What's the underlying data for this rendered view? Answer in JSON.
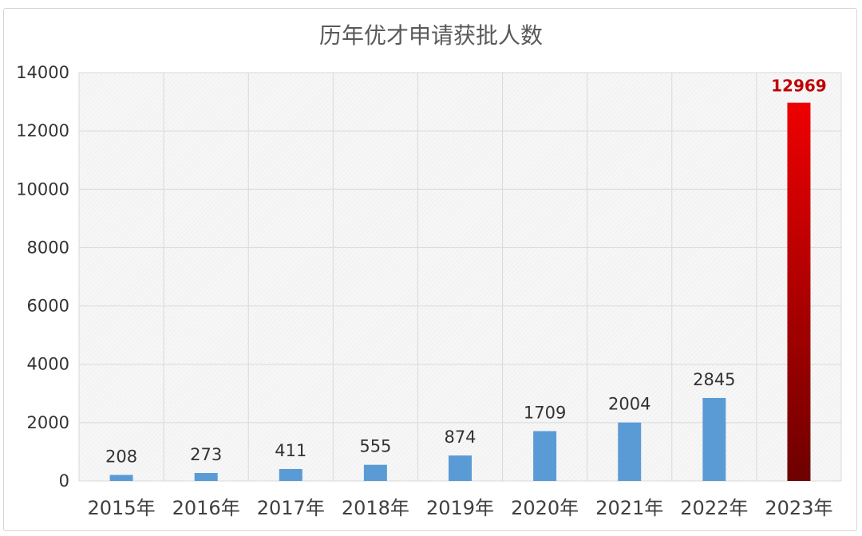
{
  "chart_data": {
    "type": "bar",
    "title": "历年优才申请获批人数",
    "xlabel": "",
    "ylabel": "",
    "categories": [
      "2015年",
      "2016年",
      "2017年",
      "2018年",
      "2019年",
      "2020年",
      "2021年",
      "2022年",
      "2023年"
    ],
    "values": [
      208,
      273,
      411,
      555,
      874,
      1709,
      2004,
      2845,
      12969
    ],
    "data_labels": [
      "208",
      "273",
      "411",
      "555",
      "874",
      "1709",
      "2004",
      "2845",
      "12969"
    ],
    "ylim": [
      0,
      14000
    ],
    "y_ticks": [
      0,
      2000,
      4000,
      6000,
      8000,
      10000,
      12000,
      14000
    ],
    "y_tick_labels": [
      "0",
      "2000",
      "4000",
      "6000",
      "8000",
      "10000",
      "12000",
      "14000"
    ],
    "grid": true,
    "legend": "none",
    "highlight_index": 8,
    "colors": {
      "bar": "#5b9bd5",
      "highlight_top": "#ee0000",
      "highlight_bottom": "#6e0000",
      "highlight_label": "#c00000",
      "grid": "#d9d9d9",
      "plot_background": "#f6f6f6"
    }
  }
}
